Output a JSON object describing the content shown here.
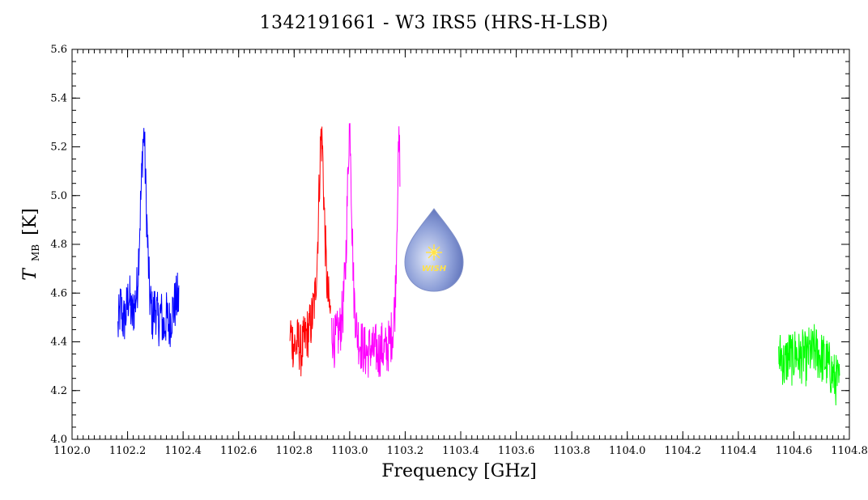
{
  "chart_data": {
    "type": "line",
    "title": "1342191661 - W3 IRS5 (HRS-H-LSB)",
    "xlabel": "Frequency [GHz]",
    "ylabel_main": "T",
    "ylabel_sub": "MB",
    "ylabel_unit": "[K]",
    "xlim": [
      1102.0,
      1104.8
    ],
    "ylim": [
      4.0,
      5.6
    ],
    "xticks": [
      "1102.0",
      "1102.2",
      "1102.4",
      "1102.6",
      "1102.8",
      "1103.0",
      "1103.2",
      "1103.4",
      "1103.6",
      "1103.8",
      "1104.0",
      "1104.2",
      "1104.4",
      "1104.6",
      "1104.8"
    ],
    "yticks": [
      "4.0",
      "4.2",
      "4.4",
      "4.6",
      "4.8",
      "5.0",
      "5.2",
      "5.4",
      "5.6"
    ],
    "grid": false,
    "logo_text": "WISH",
    "series": [
      {
        "color": "#0000ff",
        "x": [
          1102.165,
          1102.175,
          1102.185,
          1102.195,
          1102.205,
          1102.215,
          1102.225,
          1102.235,
          1102.243,
          1102.25,
          1102.255,
          1102.26,
          1102.265,
          1102.272,
          1102.28,
          1102.29,
          1102.3,
          1102.31,
          1102.32,
          1102.33,
          1102.34,
          1102.35,
          1102.36,
          1102.37,
          1102.38,
          1102.385
        ],
        "y": [
          4.45,
          4.55,
          4.48,
          4.52,
          4.6,
          4.5,
          4.55,
          4.62,
          4.85,
          5.05,
          5.22,
          5.25,
          5.05,
          4.8,
          4.58,
          4.5,
          4.55,
          4.48,
          4.52,
          4.45,
          4.5,
          4.47,
          4.52,
          4.55,
          4.58,
          4.56
        ]
      },
      {
        "color": "#ff0000",
        "x": [
          1102.785,
          1102.795,
          1102.805,
          1102.815,
          1102.825,
          1102.835,
          1102.845,
          1102.855,
          1102.865,
          1102.875,
          1102.883,
          1102.89,
          1102.896,
          1102.902,
          1102.908,
          1102.914,
          1102.92,
          1102.926,
          1102.932
        ],
        "y": [
          4.45,
          4.4,
          4.38,
          4.4,
          4.36,
          4.4,
          4.43,
          4.45,
          4.5,
          4.58,
          4.75,
          5.02,
          5.25,
          5.2,
          4.95,
          4.75,
          4.6,
          4.55,
          4.5
        ]
      },
      {
        "color": "#ff00ff",
        "x": [
          1102.935,
          1102.945,
          1102.955,
          1102.965,
          1102.975,
          1102.985,
          1102.992,
          1102.998,
          1103.003,
          1103.008,
          1103.015,
          1103.025,
          1103.035,
          1103.045,
          1103.055,
          1103.065,
          1103.075,
          1103.085,
          1103.095,
          1103.105,
          1103.115,
          1103.125,
          1103.135,
          1103.145,
          1103.155,
          1103.163,
          1103.168,
          1103.173,
          1103.178,
          1103.182
        ],
        "y": [
          4.45,
          4.4,
          4.42,
          4.45,
          4.52,
          4.7,
          5.0,
          5.28,
          5.25,
          4.9,
          4.6,
          4.45,
          4.4,
          4.38,
          4.36,
          4.35,
          4.38,
          4.36,
          4.37,
          4.35,
          4.38,
          4.36,
          4.37,
          4.4,
          4.45,
          4.55,
          4.75,
          5.05,
          5.22,
          5.1
        ]
      },
      {
        "color": "#00ff00",
        "x": [
          1104.545,
          1104.555,
          1104.565,
          1104.575,
          1104.585,
          1104.595,
          1104.605,
          1104.615,
          1104.625,
          1104.635,
          1104.645,
          1104.655,
          1104.665,
          1104.675,
          1104.685,
          1104.695,
          1104.705,
          1104.715,
          1104.725,
          1104.735,
          1104.745,
          1104.755,
          1104.765
        ],
        "y": [
          4.32,
          4.35,
          4.3,
          4.33,
          4.35,
          4.32,
          4.36,
          4.34,
          4.33,
          4.35,
          4.32,
          4.36,
          4.35,
          4.37,
          4.35,
          4.34,
          4.33,
          4.32,
          4.3,
          4.28,
          4.25,
          4.24,
          4.22
        ]
      }
    ]
  }
}
